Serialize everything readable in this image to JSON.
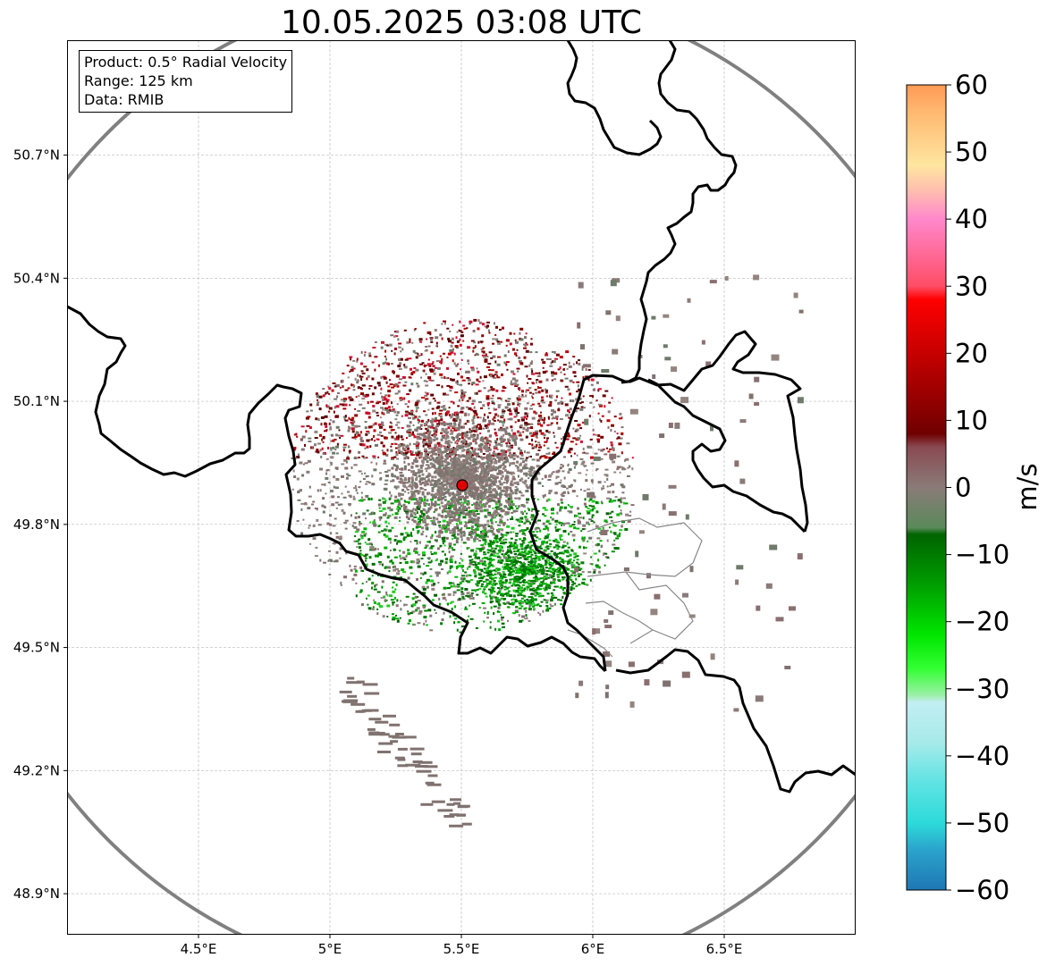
{
  "title": "10.05.2025 03:08 UTC",
  "info": {
    "product": "Product: 0.5° Radial Velocity",
    "range": "Range: 125 km",
    "data": "Data: RMIB"
  },
  "chart_data": {
    "type": "radar_map",
    "title": "10.05.2025 03:08 UTC",
    "product": "0.5° Radial Velocity",
    "range_km": 125,
    "source": "RMIB",
    "radar_site": {
      "lon": 5.5,
      "lat": 49.92
    },
    "lon_range": [
      4.0,
      7.0
    ],
    "lat_range": [
      48.8,
      50.98
    ],
    "x_ticks": [
      "4.5°E",
      "5°E",
      "5.5°E",
      "6°E",
      "6.5°E"
    ],
    "x_tick_values": [
      4.5,
      5.0,
      5.5,
      6.0,
      6.5
    ],
    "y_ticks": [
      "48.9°N",
      "49.2°N",
      "49.5°N",
      "49.8°N",
      "50.1°N",
      "50.4°N",
      "50.7°N"
    ],
    "y_tick_values": [
      48.9,
      49.2,
      49.5,
      49.8,
      50.1,
      50.4,
      50.7
    ],
    "colorbar": {
      "label": "m/s",
      "min": -60,
      "max": 60,
      "ticks": [
        -60,
        -50,
        -40,
        -30,
        -20,
        -10,
        0,
        10,
        20,
        30,
        40,
        50,
        60
      ],
      "tick_labels": [
        "−60",
        "−50",
        "−40",
        "−30",
        "−20",
        "−10",
        "0",
        "10",
        "20",
        "30",
        "40",
        "50",
        "60"
      ],
      "stops": [
        {
          "v": -60,
          "color": "#1f77b4"
        },
        {
          "v": -54,
          "color": "#2aa3cc"
        },
        {
          "v": -50,
          "color": "#2ddada"
        },
        {
          "v": -44,
          "color": "#5fe3e3"
        },
        {
          "v": -38,
          "color": "#a7eaea"
        },
        {
          "v": -32,
          "color": "#c2eef2"
        },
        {
          "v": -31,
          "color": "#9cf0a8"
        },
        {
          "v": -27,
          "color": "#33ff33"
        },
        {
          "v": -22,
          "color": "#00e600"
        },
        {
          "v": -14,
          "color": "#009900"
        },
        {
          "v": -7,
          "color": "#006400"
        },
        {
          "v": -6,
          "color": "#5a8a5a"
        },
        {
          "v": 0,
          "color": "#8a7b78"
        },
        {
          "v": 6,
          "color": "#8a4a52"
        },
        {
          "v": 8,
          "color": "#700000"
        },
        {
          "v": 18,
          "color": "#b80000"
        },
        {
          "v": 28,
          "color": "#ff0000"
        },
        {
          "v": 30,
          "color": "#ff4d66"
        },
        {
          "v": 40,
          "color": "#ff88cc"
        },
        {
          "v": 44,
          "color": "#ffbbb0"
        },
        {
          "v": 48,
          "color": "#ffe6a0"
        },
        {
          "v": 56,
          "color": "#ffb870"
        },
        {
          "v": 60,
          "color": "#ff9955"
        }
      ]
    }
  }
}
